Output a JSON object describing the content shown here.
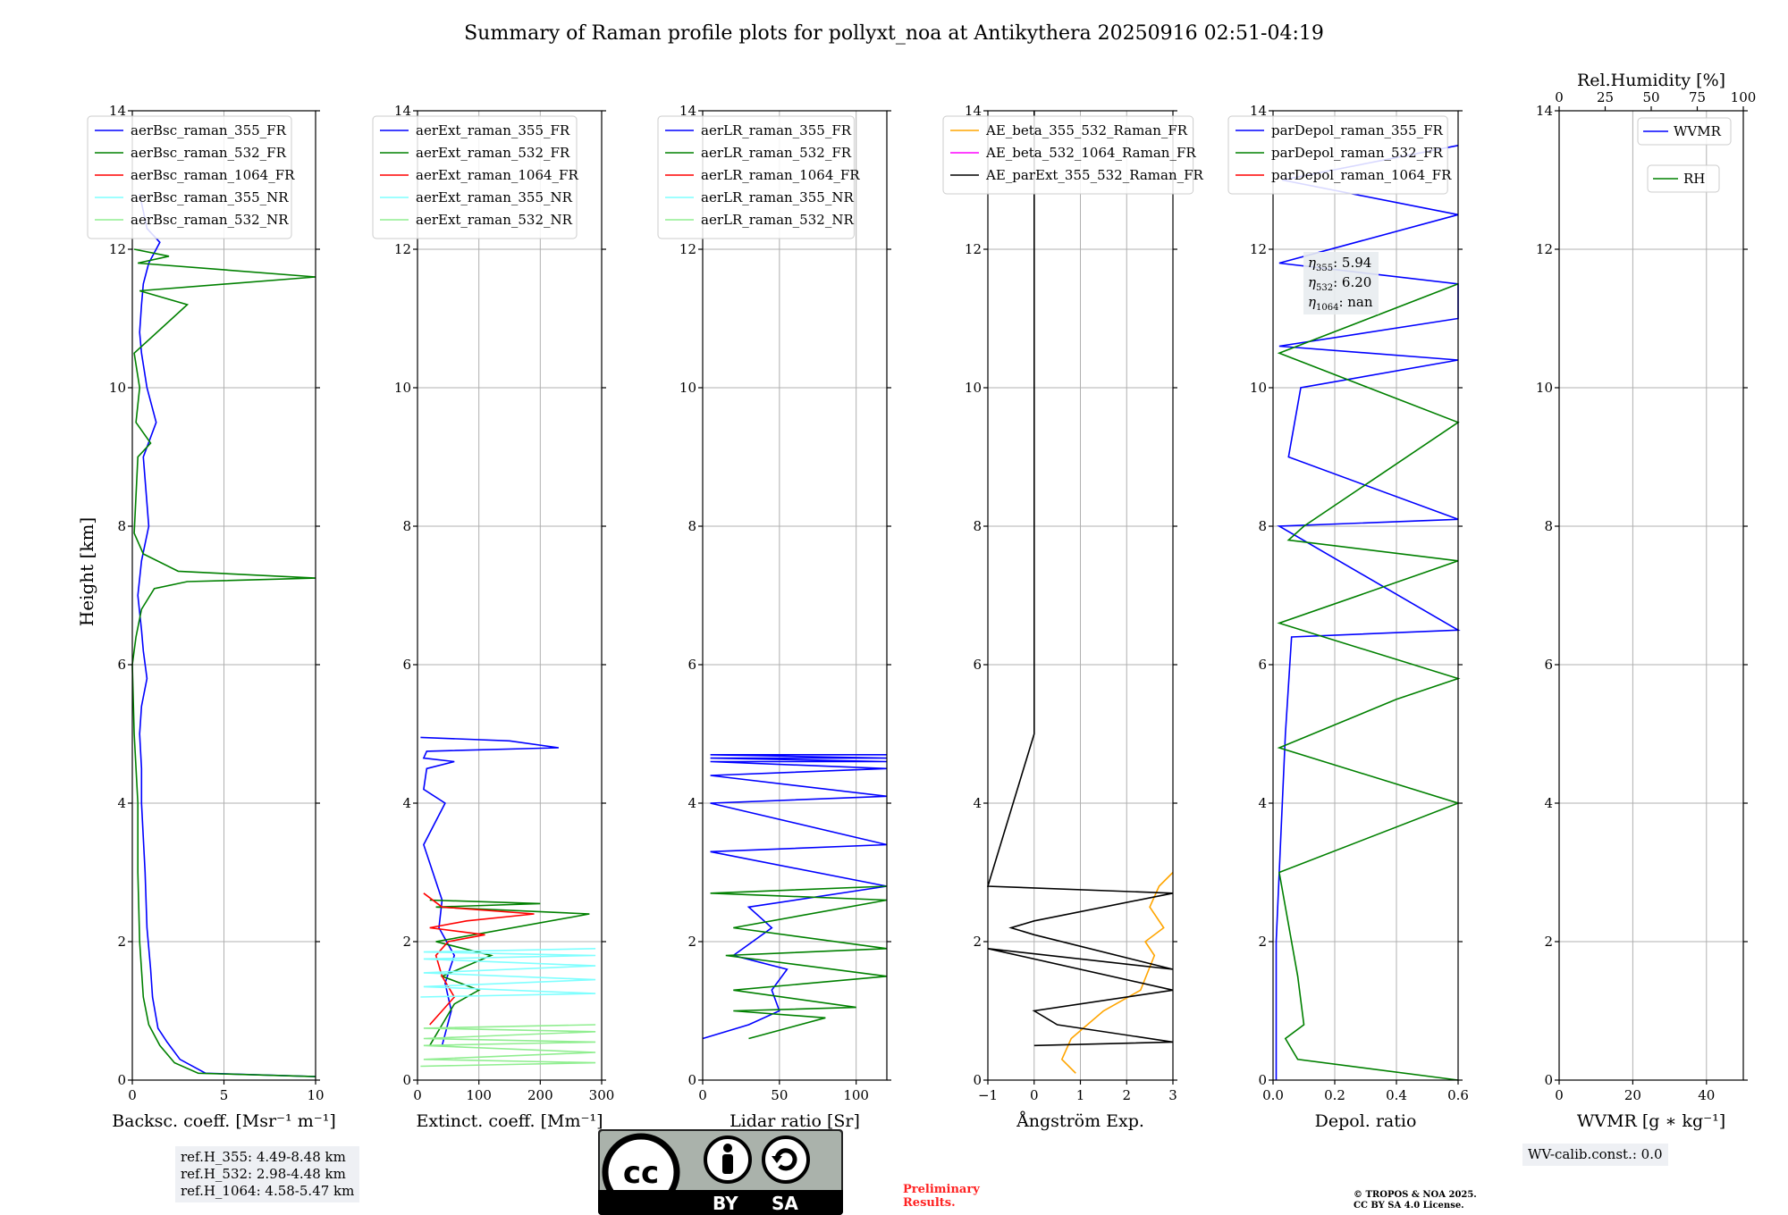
{
  "title": "Summary of Raman profile plots for pollyxt_noa at Antikythera 20250916 02:51-04:19",
  "y_label": "Height [km]",
  "y_range": [
    0,
    14
  ],
  "y_ticks": [
    "0",
    "2",
    "4",
    "6",
    "8",
    "10",
    "12",
    "14"
  ],
  "panels": [
    {
      "id": "bsc",
      "xlabel": "Backsc. coeff. [Msr⁻¹ m⁻¹]",
      "xlim": [
        0,
        10
      ],
      "xticks": [
        "0",
        "5",
        "10"
      ],
      "xtickvals": [
        0,
        5,
        10
      ],
      "legend": [
        {
          "label": "aerBsc_raman_355_FR",
          "color": "#0000ff"
        },
        {
          "label": "aerBsc_raman_532_FR",
          "color": "#008000"
        },
        {
          "label": "aerBsc_raman_1064_FR",
          "color": "#ff0000"
        },
        {
          "label": "aerBsc_raman_355_NR",
          "color": "#7fffff"
        },
        {
          "label": "aerBsc_raman_532_NR",
          "color": "#90ee90"
        }
      ]
    },
    {
      "id": "ext",
      "xlabel": "Extinct. coeff. [Mm⁻¹]",
      "xlim": [
        0,
        300
      ],
      "xticks": [
        "0",
        "100",
        "200",
        "300"
      ],
      "xtickvals": [
        0,
        100,
        200,
        300
      ],
      "legend": [
        {
          "label": "aerExt_raman_355_FR",
          "color": "#0000ff"
        },
        {
          "label": "aerExt_raman_532_FR",
          "color": "#008000"
        },
        {
          "label": "aerExt_raman_1064_FR",
          "color": "#ff0000"
        },
        {
          "label": "aerExt_raman_355_NR",
          "color": "#7fffff"
        },
        {
          "label": "aerExt_raman_532_NR",
          "color": "#90ee90"
        }
      ]
    },
    {
      "id": "lr",
      "xlabel": "Lidar ratio [Sr]",
      "xlim": [
        0,
        120
      ],
      "xticks": [
        "0",
        "50",
        "100"
      ],
      "xtickvals": [
        0,
        50,
        100
      ],
      "legend": [
        {
          "label": "aerLR_raman_355_FR",
          "color": "#0000ff"
        },
        {
          "label": "aerLR_raman_532_FR",
          "color": "#008000"
        },
        {
          "label": "aerLR_raman_1064_FR",
          "color": "#ff0000"
        },
        {
          "label": "aerLR_raman_355_NR",
          "color": "#7fffff"
        },
        {
          "label": "aerLR_raman_532_NR",
          "color": "#90ee90"
        }
      ]
    },
    {
      "id": "ae",
      "xlabel": "Ångström Exp.",
      "xlim": [
        -1,
        3
      ],
      "xticks": [
        "−1",
        "0",
        "1",
        "2",
        "3"
      ],
      "xtickvals": [
        -1,
        0,
        1,
        2,
        3
      ],
      "legend": [
        {
          "label": "AE_beta_355_532_Raman_FR",
          "color": "#ffa500"
        },
        {
          "label": "AE_beta_532_1064_Raman_FR",
          "color": "#ff00ff"
        },
        {
          "label": "AE_parExt_355_532_Raman_FR",
          "color": "#000000"
        }
      ]
    },
    {
      "id": "dep",
      "xlabel": "Depol. ratio",
      "xlim": [
        0,
        0.6
      ],
      "xticks": [
        "0.0",
        "0.2",
        "0.4",
        "0.6"
      ],
      "xtickvals": [
        0,
        0.2,
        0.4,
        0.6
      ],
      "legend": [
        {
          "label": "parDepol_raman_355_FR",
          "color": "#0000ff"
        },
        {
          "label": "parDepol_raman_532_FR",
          "color": "#008000"
        },
        {
          "label": "parDepol_raman_1064_FR",
          "color": "#ff0000"
        }
      ],
      "eta": [
        {
          "sub": "355",
          "value": "5.94"
        },
        {
          "sub": "532",
          "value": "6.20"
        },
        {
          "sub": "1064",
          "value": "nan"
        }
      ]
    },
    {
      "id": "wv",
      "xlabel": "WVMR [g ∗ kg⁻¹]",
      "xlim": [
        0,
        50
      ],
      "xticks": [
        "0",
        "20",
        "40"
      ],
      "xtickvals": [
        0,
        20,
        40
      ],
      "top_xlabel": "Rel.Humidity [%]",
      "top_xticks": [
        "0",
        "25",
        "50",
        "75",
        "100"
      ],
      "top_xtickvals": [
        0,
        25,
        50,
        75,
        100
      ],
      "legend": [
        {
          "label": "WVMR",
          "color": "#0000ff"
        },
        {
          "label": "RH",
          "color": "#008000"
        }
      ]
    }
  ],
  "ref_heights": [
    "ref.H_355: 4.49-8.48 km",
    "ref.H_532: 2.98-4.48 km",
    "ref.H_1064: 4.58-5.47 km"
  ],
  "wv_calib": "WV-calib.const.: 0.0",
  "preliminary": [
    "Preliminary",
    "Results."
  ],
  "copyright": [
    "© TROPOS & NOA 2025.",
    "CC BY SA 4.0 License."
  ],
  "cc_badge": {
    "logo": "cc",
    "by": "BY",
    "sa": "SA"
  },
  "colors": {
    "blue": "#0000ff",
    "green": "#008000",
    "red": "#ff0000",
    "cyan": "#7fffff",
    "lightgreen": "#90ee90",
    "orange": "#ffa500",
    "magenta": "#ff00ff",
    "black": "#000000",
    "preliminary": "#ff2222"
  },
  "chart_data": [
    {
      "type": "line",
      "panel": "bsc",
      "title": "",
      "xlabel": "Backsc. coeff. [Msr-1 m-1]",
      "ylabel": "Height [km]",
      "xlim": [
        0,
        10
      ],
      "ylim": [
        0,
        14
      ],
      "series": [
        {
          "name": "aerBsc_raman_355_FR",
          "x": [
            10.0,
            4.0,
            2.6,
            1.9,
            1.4,
            1.1,
            1.0,
            0.8,
            0.7,
            0.6,
            0.5,
            0.5,
            0.4,
            0.5,
            0.8,
            0.6,
            0.5,
            0.3,
            0.5,
            0.9,
            0.6,
            1.3,
            0.8,
            0.5,
            0.4,
            0.5,
            0.6,
            0.9,
            1.5,
            0.8,
            0.4
          ],
          "y": [
            0.05,
            0.1,
            0.3,
            0.55,
            0.75,
            1.2,
            1.6,
            2.2,
            3.0,
            3.5,
            4.0,
            4.5,
            5.0,
            5.4,
            5.8,
            6.2,
            6.5,
            7.0,
            7.5,
            8.0,
            9.0,
            9.5,
            10.0,
            10.5,
            10.8,
            11.2,
            11.5,
            11.8,
            12.1,
            12.3,
            12.8
          ]
        },
        {
          "name": "aerBsc_raman_532_FR",
          "x": [
            10.0,
            3.6,
            2.3,
            1.5,
            0.9,
            0.6,
            0.4,
            0.3,
            0.3,
            0.1,
            0.0,
            0.2,
            0.5,
            1.2,
            3.0,
            10.0,
            2.5,
            0.6,
            0.1,
            0.3,
            1.0,
            0.2,
            0.4,
            0.1,
            3.0,
            0.4,
            10.0,
            0.3,
            2.0,
            0.1
          ],
          "y": [
            0.05,
            0.1,
            0.25,
            0.5,
            0.8,
            1.2,
            2.0,
            3.0,
            4.0,
            5.0,
            6.0,
            6.4,
            6.8,
            7.1,
            7.2,
            7.25,
            7.35,
            7.6,
            7.9,
            9.0,
            9.2,
            9.5,
            10.0,
            10.5,
            11.2,
            11.4,
            11.6,
            11.8,
            11.9,
            12.0
          ]
        }
      ]
    },
    {
      "type": "line",
      "panel": "ext",
      "title": "",
      "xlabel": "Extinct. coeff. [Mm-1]",
      "ylabel": "Height [km]",
      "xlim": [
        0,
        300
      ],
      "ylim": [
        0,
        14
      ],
      "series": [
        {
          "name": "aerExt_raman_355_FR",
          "x": [
            40,
            55,
            45,
            60,
            35,
            40,
            25,
            10,
            45,
            10,
            15,
            60,
            10,
            15,
            230,
            150,
            5
          ],
          "y": [
            0.5,
            1.0,
            1.4,
            1.8,
            2.2,
            2.6,
            3.0,
            3.4,
            4.0,
            4.2,
            4.5,
            4.6,
            4.65,
            4.75,
            4.8,
            4.9,
            4.95
          ]
        },
        {
          "name": "aerExt_raman_532_FR",
          "x": [
            20,
            40,
            60,
            100,
            40,
            120,
            30,
            280,
            30,
            200,
            20
          ],
          "y": [
            0.5,
            0.8,
            1.1,
            1.3,
            1.5,
            1.8,
            2.0,
            2.4,
            2.5,
            2.55,
            2.6
          ]
        },
        {
          "name": "aerExt_raman_1064_FR",
          "x": [
            20,
            40,
            60,
            40,
            30,
            50,
            110,
            20,
            80,
            190,
            40,
            10
          ],
          "y": [
            0.8,
            1.0,
            1.2,
            1.5,
            1.8,
            2.0,
            2.1,
            2.2,
            2.3,
            2.4,
            2.5,
            2.7
          ]
        },
        {
          "name": "aerExt_raman_355_NR",
          "x": [
            5,
            290,
            10,
            290,
            10,
            290,
            10,
            290,
            10,
            290
          ],
          "y": [
            1.2,
            1.25,
            1.35,
            1.45,
            1.55,
            1.65,
            1.75,
            1.8,
            1.85,
            1.9
          ]
        },
        {
          "name": "aerExt_raman_532_NR",
          "x": [
            5,
            290,
            10,
            290,
            10,
            290,
            10,
            290,
            10,
            290
          ],
          "y": [
            0.2,
            0.25,
            0.3,
            0.4,
            0.5,
            0.55,
            0.6,
            0.7,
            0.75,
            0.8
          ]
        }
      ]
    },
    {
      "type": "line",
      "panel": "lr",
      "title": "",
      "xlabel": "Lidar ratio [Sr]",
      "ylabel": "Height [km]",
      "xlim": [
        0,
        120
      ],
      "ylim": [
        0,
        14
      ],
      "series": [
        {
          "name": "aerLR_raman_355_FR",
          "x": [
            0,
            30,
            50,
            45,
            55,
            20,
            45,
            30,
            120,
            5,
            120,
            5,
            120,
            5,
            120,
            5,
            120,
            5,
            120,
            5,
            120
          ],
          "y": [
            0.6,
            0.8,
            1.0,
            1.3,
            1.6,
            1.8,
            2.2,
            2.5,
            2.8,
            3.3,
            3.4,
            4.0,
            4.1,
            4.4,
            4.5,
            4.6,
            4.6,
            4.65,
            4.65,
            4.7,
            4.7
          ]
        },
        {
          "name": "aerLR_raman_532_FR",
          "x": [
            30,
            80,
            20,
            100,
            20,
            120,
            15,
            120,
            20,
            120,
            5,
            120
          ],
          "y": [
            0.6,
            0.9,
            1.0,
            1.05,
            1.3,
            1.5,
            1.8,
            1.9,
            2.2,
            2.6,
            2.7,
            2.8
          ]
        }
      ]
    },
    {
      "type": "line",
      "panel": "ae",
      "title": "",
      "xlabel": "Angstrom Exp.",
      "ylabel": "Height [km]",
      "xlim": [
        -1,
        3
      ],
      "ylim": [
        0,
        14
      ],
      "series": [
        {
          "name": "AE_beta_355_532_Raman_FR",
          "x": [
            0.9,
            0.6,
            0.8,
            1.5,
            2.3,
            2.6,
            2.4,
            2.8,
            2.5,
            2.7,
            3.0
          ],
          "y": [
            0.1,
            0.3,
            0.6,
            1.0,
            1.3,
            1.8,
            2.0,
            2.2,
            2.5,
            2.8,
            3.0
          ]
        },
        {
          "name": "AE_parExt_355_532_Raman_FR",
          "x": [
            0,
            3,
            0.5,
            0,
            3,
            -1,
            3,
            0,
            -0.5,
            0,
            3,
            -1,
            0,
            0
          ],
          "y": [
            0.5,
            0.55,
            0.8,
            1.0,
            1.3,
            1.9,
            1.6,
            2.1,
            2.2,
            2.3,
            2.7,
            2.8,
            5.0,
            14.0
          ]
        }
      ]
    },
    {
      "type": "line",
      "panel": "dep",
      "title": "",
      "xlabel": "Depol. ratio",
      "ylabel": "Height [km]",
      "xlim": [
        0,
        0.6
      ],
      "ylim": [
        0,
        14
      ],
      "series": [
        {
          "name": "parDepol_raman_355_FR",
          "x": [
            0.01,
            0.01,
            0.02,
            0.04,
            0.06,
            0.6,
            0.02,
            0.6,
            0.05,
            0.09,
            0.6,
            0.02,
            0.6,
            0.6,
            0.02,
            0.6,
            0.03,
            0.6
          ],
          "y": [
            0.0,
            2.0,
            3.0,
            5.0,
            6.4,
            6.5,
            8.0,
            8.1,
            9.0,
            10.0,
            10.4,
            10.6,
            11.0,
            11.5,
            11.8,
            12.5,
            13.0,
            13.5
          ]
        },
        {
          "name": "parDepol_raman_532_FR",
          "x": [
            0.6,
            0.08,
            0.04,
            0.1,
            0.08,
            0.02,
            0.6,
            0.02,
            0.4,
            0.6,
            0.02,
            0.6,
            0.05,
            0.1,
            0.6,
            0.02,
            0.6
          ],
          "y": [
            0.0,
            0.3,
            0.6,
            0.8,
            1.5,
            3.0,
            4.0,
            4.8,
            5.5,
            5.8,
            6.6,
            7.5,
            7.8,
            8.0,
            9.5,
            10.5,
            11.5
          ]
        }
      ]
    },
    {
      "type": "line",
      "panel": "wv",
      "title": "",
      "xlabel": "WVMR",
      "ylabel": "Height [km]",
      "xlim": [
        0,
        50
      ],
      "ylim": [
        0,
        14
      ],
      "series": []
    }
  ]
}
